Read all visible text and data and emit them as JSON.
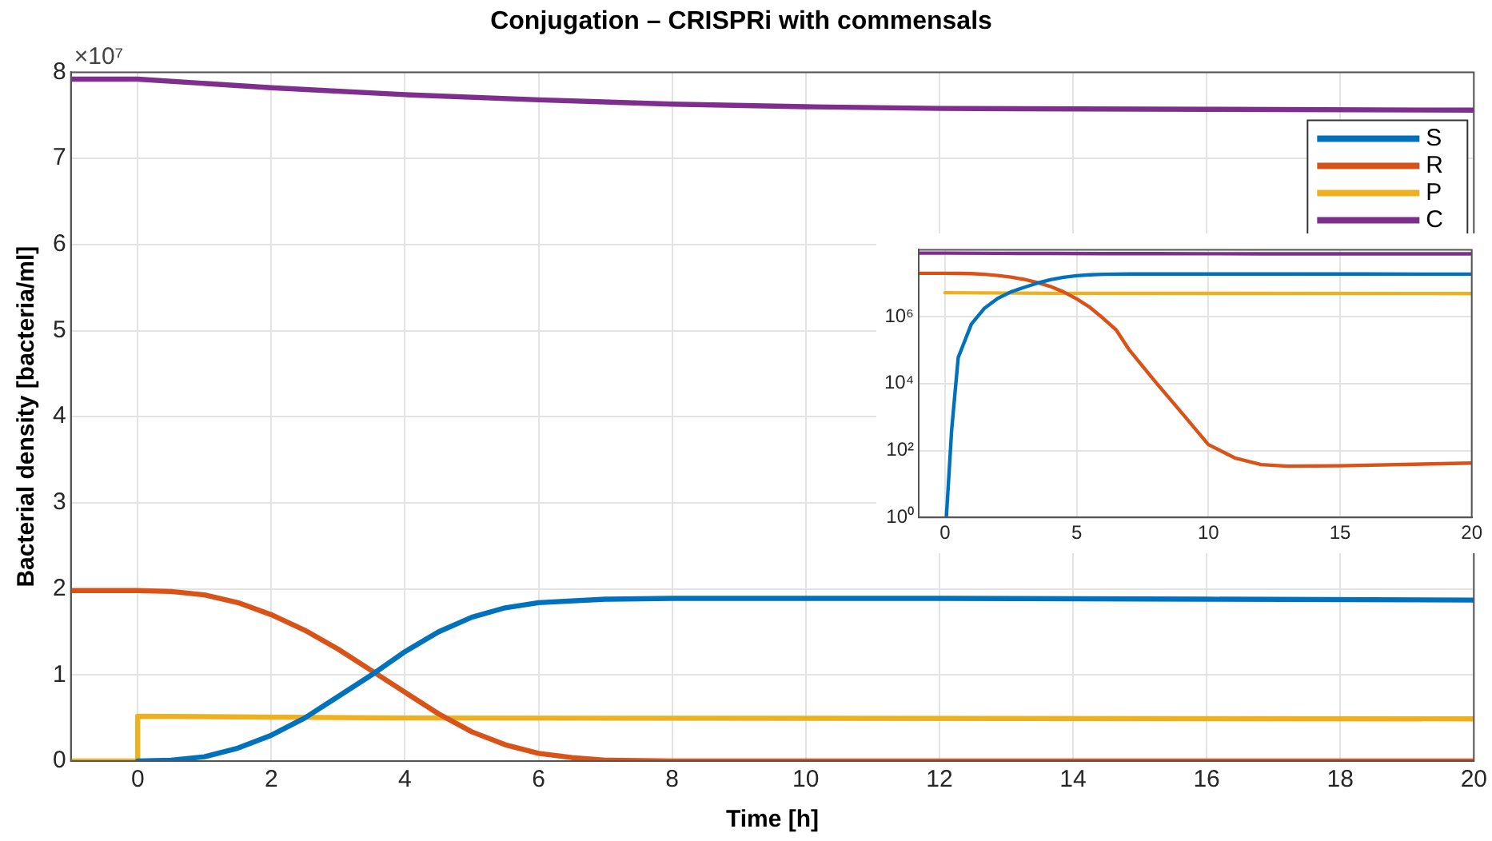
{
  "chart_data": [
    {
      "type": "line",
      "title": "Conjugation – CRISPRi with commensals",
      "xlabel": "Time [h]",
      "ylabel": "Bacterial density [bacteria/ml]",
      "annotations": [
        "×10⁷"
      ],
      "xlim": [
        -1,
        20
      ],
      "xticks": [
        0,
        2,
        4,
        6,
        8,
        10,
        12,
        14,
        16,
        18,
        20
      ],
      "ylim": [
        0,
        8
      ],
      "yticks": [
        0,
        1,
        2,
        3,
        4,
        5,
        6,
        7,
        8
      ],
      "grid": true,
      "legend": "top right",
      "marker": "none",
      "line_style": "solid",
      "series": [
        {
          "name": "S",
          "color": "#0072bd",
          "x": [
            0,
            0.5,
            1,
            1.5,
            2,
            2.5,
            3,
            3.5,
            4,
            4.5,
            5,
            5.5,
            6,
            7,
            8,
            12,
            16,
            20
          ],
          "values": [
            0,
            0.01,
            0.05,
            0.15,
            0.3,
            0.5,
            0.75,
            1.0,
            1.27,
            1.5,
            1.67,
            1.78,
            1.84,
            1.88,
            1.89,
            1.89,
            1.88,
            1.87
          ]
        },
        {
          "name": "R",
          "color": "#d95319",
          "x": [
            -1,
            0,
            0.5,
            1,
            1.5,
            2,
            2.5,
            3,
            3.5,
            4,
            4.5,
            5,
            5.5,
            6,
            6.5,
            7,
            8,
            20
          ],
          "values": [
            1.98,
            1.98,
            1.97,
            1.93,
            1.84,
            1.7,
            1.52,
            1.3,
            1.05,
            0.8,
            0.55,
            0.34,
            0.19,
            0.09,
            0.04,
            0.01,
            0,
            0
          ]
        },
        {
          "name": "P",
          "color": "#edb120",
          "x": [
            -1,
            0,
            0,
            4,
            20
          ],
          "values": [
            0,
            0,
            0.52,
            0.5,
            0.49
          ]
        },
        {
          "name": "C",
          "color": "#7e2f8e",
          "x": [
            -1,
            0,
            2,
            4,
            6,
            8,
            10,
            12,
            16,
            20
          ],
          "values": [
            7.92,
            7.92,
            7.82,
            7.74,
            7.68,
            7.63,
            7.6,
            7.58,
            7.57,
            7.56
          ]
        }
      ]
    },
    {
      "type": "line",
      "log": "y",
      "xlim": [
        -1,
        20
      ],
      "xticks": [
        0,
        5,
        10,
        15,
        20
      ],
      "ylim": [
        1,
        100000000
      ],
      "yticks": [
        {
          "value": 1,
          "label": "10⁰"
        },
        {
          "value": 100,
          "label": "10²"
        },
        {
          "value": 10000,
          "label": "10⁴"
        },
        {
          "value": 1000000,
          "label": "10⁶"
        }
      ],
      "grid": true,
      "marker": "none",
      "line_style": "solid",
      "series": [
        {
          "color": "#0072bd",
          "x": [
            0.05,
            0.25,
            0.5,
            1,
            1.5,
            2,
            2.5,
            3,
            3.5,
            4,
            4.5,
            5,
            5.5,
            6,
            7,
            8,
            12,
            16,
            20
          ],
          "values": [
            1,
            400,
            60000,
            600000,
            1800000,
            3500000,
            5500000,
            7500000,
            10000000,
            12700000,
            15000000,
            16700000,
            17800000,
            18400000,
            18800000,
            18900000,
            18900000,
            18800000,
            18700000
          ]
        },
        {
          "color": "#d95319",
          "x": [
            -1,
            0,
            0.5,
            1,
            1.5,
            2,
            2.5,
            3,
            3.5,
            4,
            4.5,
            5,
            5.5,
            6,
            6.5,
            7,
            8,
            9,
            10,
            11,
            12,
            13,
            15,
            20
          ],
          "values": [
            19800000,
            19800000,
            19700000,
            19300000,
            18400000,
            17000000,
            15200000,
            13000000,
            10500000,
            8000000,
            5500000,
            3400000,
            1900000,
            900000,
            400000,
            100000,
            11000,
            1300,
            150,
            60,
            38,
            34,
            35,
            42
          ]
        },
        {
          "color": "#edb120",
          "x": [
            0,
            4,
            20
          ],
          "values": [
            5200000,
            5000000,
            4900000
          ]
        },
        {
          "color": "#7e2f8e",
          "x": [
            -1,
            0,
            2,
            4,
            6,
            8,
            10,
            12,
            16,
            20
          ],
          "values": [
            79200000,
            79200000,
            78200000,
            77400000,
            76800000,
            76300000,
            76000000,
            75800000,
            75700000,
            75600000
          ]
        }
      ]
    }
  ]
}
